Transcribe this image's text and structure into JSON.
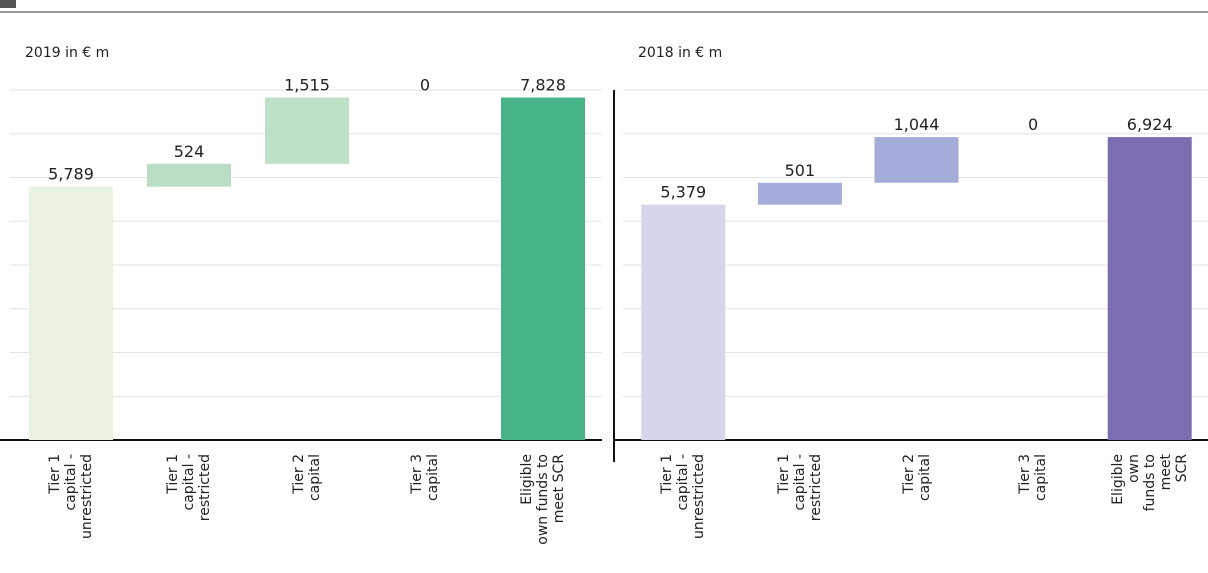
{
  "chart_data": [
    {
      "type": "waterfall",
      "title": "2019 in € m",
      "categories": [
        "Tier 1\ncapital -\nunrestricted",
        "Tier 1\ncapital -\nrestricted",
        "Tier 2\ncapital",
        "Tier 3\ncapital",
        "Eligible\nown funds to\nmeet SCR"
      ],
      "measure": [
        "relative",
        "relative",
        "relative",
        "relative",
        "total"
      ],
      "values": [
        5789,
        524,
        1515,
        0,
        7828
      ],
      "value_labels": [
        "5,789",
        "524",
        "1,515",
        "0",
        "7,828"
      ],
      "colors": [
        "#eaf3e2",
        "#b9dec5",
        "#bde0c7",
        "#bde0c7",
        "#46b487"
      ],
      "ylim": [
        0,
        8000
      ],
      "yticks": [
        0,
        1000,
        2000,
        3000,
        4000,
        5000,
        6000,
        7000,
        8000
      ],
      "grid": true
    },
    {
      "type": "waterfall",
      "title": "2018 in € m",
      "categories": [
        "Tier 1\ncapital -\nunrestricted",
        "Tier 1\ncapital -\nrestricted",
        "Tier 2\ncapital",
        "Tier 3\ncapital",
        "Eligible\nown funds to\nmeet SCR"
      ],
      "measure": [
        "relative",
        "relative",
        "relative",
        "relative",
        "total"
      ],
      "values": [
        5379,
        501,
        1044,
        0,
        6924
      ],
      "value_labels": [
        "5,379",
        "501",
        "1,044",
        "0",
        "6,924"
      ],
      "colors": [
        "#d5d5ec",
        "#a6acd9",
        "#a6acd9",
        "#a6acd9",
        "#7b6db0"
      ],
      "ylim": [
        0,
        8000
      ],
      "yticks": [
        0,
        1000,
        2000,
        3000,
        4000,
        5000,
        6000,
        7000,
        8000
      ],
      "grid": true
    }
  ]
}
